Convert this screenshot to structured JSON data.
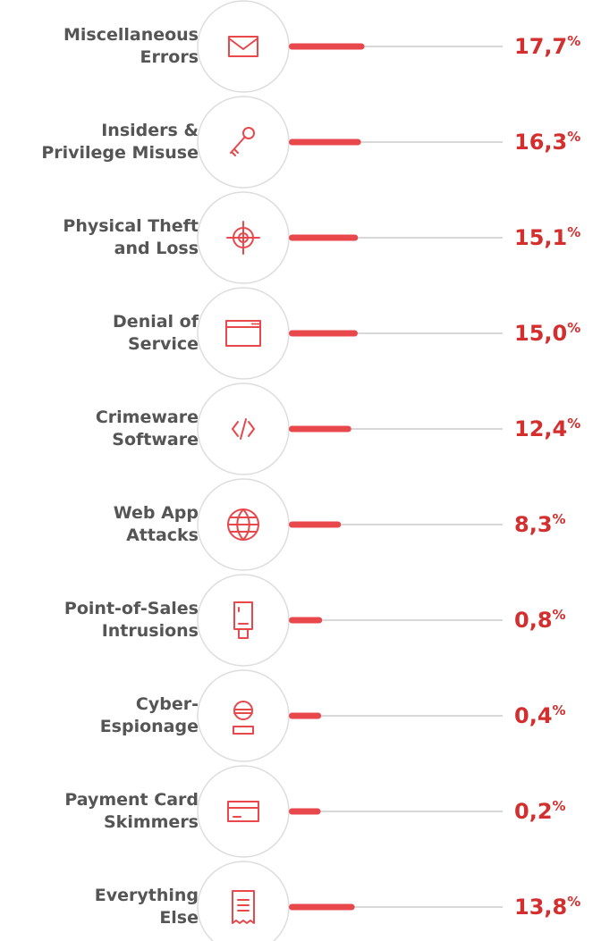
{
  "chart_data": {
    "type": "bar",
    "categories": [
      [
        "Miscellaneous",
        "Errors"
      ],
      [
        "Insiders &",
        "Privilege Misuse"
      ],
      [
        "Physical Theft",
        "and Loss"
      ],
      [
        "Denial of",
        "Service"
      ],
      [
        "Crimeware",
        "Software"
      ],
      [
        "Web App",
        "Attacks"
      ],
      [
        "Point-of-Sales",
        "Intrusions"
      ],
      [
        "Cyber-",
        "Espionage"
      ],
      [
        "Payment Card",
        "Skimmers"
      ],
      [
        "Everything",
        "Else"
      ]
    ],
    "values": [
      17.7,
      16.3,
      15.1,
      15.0,
      12.4,
      8.3,
      0.8,
      0.4,
      0.2,
      13.8
    ],
    "value_labels": [
      "17,7",
      "16,3",
      "15,1",
      "15,0",
      "12,4",
      "8,3",
      "0,8",
      "0,4",
      "0,2",
      "13,8"
    ],
    "unit": "%",
    "color": "#e8474c"
  }
}
